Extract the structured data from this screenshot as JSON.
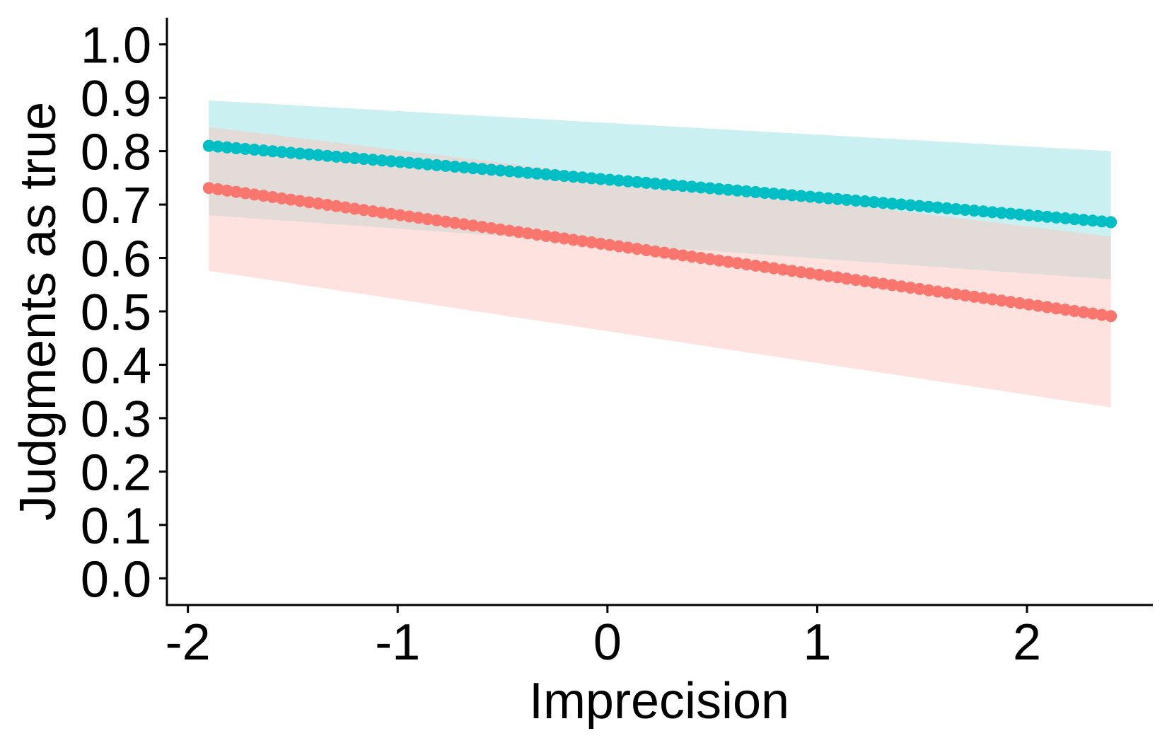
{
  "chart_data": {
    "type": "scatter",
    "title": "",
    "xlabel": "Imprecision",
    "ylabel": "Judgments as true",
    "xlim": [
      -2.1,
      2.6
    ],
    "ylim": [
      -0.05,
      1.05
    ],
    "xticks": [
      -2,
      -1,
      0,
      1,
      2
    ],
    "xtick_labels": [
      "-2",
      "-1",
      "0",
      "1",
      "2"
    ],
    "yticks": [
      0.0,
      0.1,
      0.2,
      0.3,
      0.4,
      0.5,
      0.6,
      0.7,
      0.8,
      0.9,
      1.0
    ],
    "ytick_labels": [
      "0.0",
      "0.1",
      "0.2",
      "0.3",
      "0.4",
      "0.5",
      "0.6",
      "0.7",
      "0.8",
      "0.9",
      "1.0"
    ],
    "grid": false,
    "legend": "none",
    "x_range": [
      -1.9,
      2.4
    ],
    "points_per_series": 100,
    "series": [
      {
        "color": "#00BFC4",
        "fill_color": "#A8E6E8",
        "fill_opacity": 0.6,
        "fit_start": [
          -1.9,
          0.81
        ],
        "fit_end": [
          2.4,
          0.667
        ],
        "band_lower_start": 0.68,
        "band_lower_end": 0.56,
        "band_upper_start": 0.895,
        "band_upper_end": 0.8
      },
      {
        "color": "#F8766D",
        "fill_color": "#FCC5C0",
        "fill_opacity": 0.5,
        "fit_start": [
          -1.9,
          0.731
        ],
        "fit_end": [
          2.4,
          0.491
        ],
        "band_lower_start": 0.576,
        "band_lower_end": 0.32,
        "band_upper_start": 0.845,
        "band_upper_end": 0.64
      }
    ]
  }
}
